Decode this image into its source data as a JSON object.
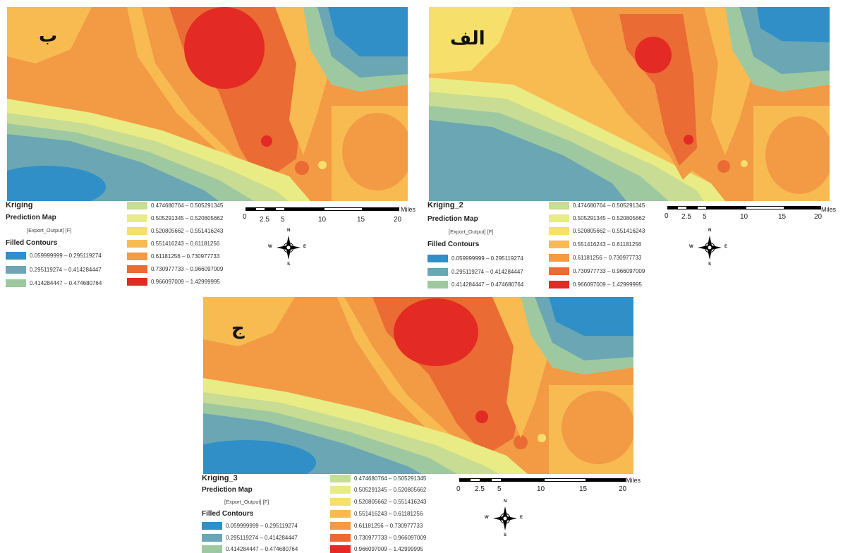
{
  "panels": [
    {
      "id": "b",
      "label": "ب",
      "layer_name": "Kriging",
      "map_title": "Prediction Map",
      "field": "[Export_Output] [F]",
      "contour_heading": "Filled Contours"
    },
    {
      "id": "alef",
      "label": "الف",
      "layer_name": "Kriging_2",
      "map_title": "Prediction Map",
      "field": "[Export_Output] [F]",
      "contour_heading": "Filled Contours"
    },
    {
      "id": "jim",
      "label": "ج",
      "layer_name": "Kriging_3",
      "map_title": "Prediction Map",
      "field": "[Export_Output] [F]",
      "contour_heading": "Filled Contours"
    }
  ],
  "classes": [
    {
      "range": "0.059999999 – 0.295119274",
      "color": "#2f8fc6"
    },
    {
      "range": "0.295119274 – 0.414284447",
      "color": "#6aa6b4"
    },
    {
      "range": "0.414284447 – 0.474680764",
      "color": "#9ec9a0"
    },
    {
      "range": "0.474680764 – 0.505291345",
      "color": "#c8dc94"
    },
    {
      "range": "0.505291345 – 0.520805662",
      "color": "#e9ec84"
    },
    {
      "range": "0.520805662 – 0.551416243",
      "color": "#f6df6a"
    },
    {
      "range": "0.551416243 – 0.61181256",
      "color": "#f8bb52"
    },
    {
      "range": "0.61181256 – 0.730977733",
      "color": "#f39a45"
    },
    {
      "range": "0.730977733 – 0.966097009",
      "color": "#ea6b33"
    },
    {
      "range": "0.966097009 – 1.42999995",
      "color": "#e42a24"
    }
  ],
  "scale": {
    "ticks": [
      "0",
      "2.5",
      "5",
      "10",
      "15",
      "20"
    ],
    "unit": "Miles"
  },
  "north_arrow": {
    "n": "N",
    "s": "S",
    "e": "E",
    "w": "W",
    "icon": "north-arrow-compass"
  }
}
